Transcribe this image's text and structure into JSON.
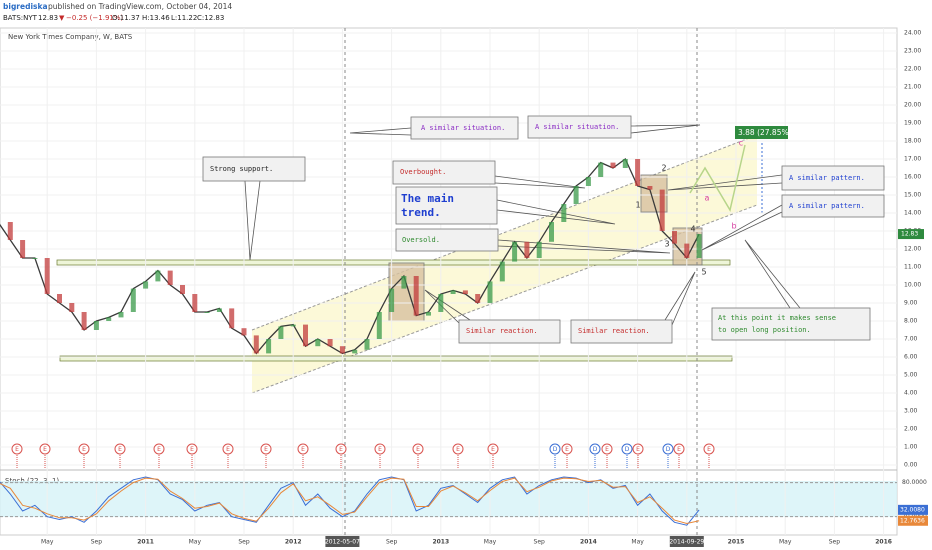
{
  "header": {
    "author": "bigrediska",
    "published": "published on TradingView.com, October 04, 2014",
    "quote": [
      "BATS:NYT",
      "12.83",
      "▼",
      "−0.25 (−1.91%)",
      "O:11.37",
      "H:13.46",
      "L:11.22",
      "C:12.83"
    ]
  },
  "chart_data": [
    {
      "type": "line",
      "title": "New York Times Company, W, BATS",
      "color": "#3a3a3a",
      "categories": [
        null,
        null,
        null,
        null,
        "May",
        null,
        null,
        null,
        "Sep",
        null,
        null,
        null,
        "2011",
        null,
        null,
        null,
        "May",
        null,
        null,
        null,
        "Sep",
        null,
        null,
        null,
        "2012",
        null,
        null,
        null,
        "2012-05-07",
        null,
        null,
        null,
        "Sep",
        null,
        null,
        null,
        "2013",
        null,
        null,
        null,
        "May",
        null,
        null,
        null,
        "Sep",
        null,
        null,
        null,
        "2014",
        null,
        null,
        null,
        "May",
        null,
        null,
        null,
        "2014-09-29",
        null,
        null,
        null,
        "2015",
        null,
        null,
        null,
        "May",
        null,
        null,
        null,
        "Sep",
        null,
        null,
        null,
        "2016",
        null,
        null
      ],
      "values": [
        13.5,
        12.5,
        11.5,
        11.5,
        9.5,
        9,
        8.5,
        7.5,
        8,
        8.2,
        8.5,
        9.8,
        10.2,
        10.8,
        10,
        9.5,
        8.5,
        8.5,
        8.7,
        7.6,
        7.2,
        6.2,
        7,
        7.7,
        7.8,
        6.6,
        7,
        6.6,
        6.2,
        6.4,
        7,
        8.5,
        9.8,
        10.5,
        8.3,
        8.5,
        9.5,
        9.7,
        9.5,
        9,
        10.2,
        11.3,
        12.4,
        11.5,
        12.4,
        13.5,
        14.5,
        15.5,
        16,
        16.8,
        16.5,
        17,
        15.5,
        15.3,
        13,
        12.3,
        11.5,
        12.83,
        null,
        null,
        null,
        null,
        null,
        null,
        null,
        null,
        null,
        null,
        null,
        null,
        null,
        null,
        null,
        null,
        null
      ],
      "last_label": "12.83",
      "ylim": [
        0,
        24
      ],
      "yticks": [
        {
          "value": 0,
          "label": "0.00"
        },
        {
          "value": 1,
          "label": "1.00"
        },
        {
          "value": 2,
          "label": "2.00"
        },
        {
          "value": 3,
          "label": "3.00"
        },
        {
          "value": 4,
          "label": "4.00"
        },
        {
          "value": 5,
          "label": "5.00"
        },
        {
          "value": 6,
          "label": "6.00"
        },
        {
          "value": 7,
          "label": "7.00"
        },
        {
          "value": 8,
          "label": "8.00"
        },
        {
          "value": 9,
          "label": "9.00"
        },
        {
          "value": 10,
          "label": "10.00"
        },
        {
          "value": 11,
          "label": "11.00"
        },
        {
          "value": 12,
          "label": "12.00"
        },
        {
          "value": 13,
          "label": "13.00"
        },
        {
          "value": 14,
          "label": "14.00"
        },
        {
          "value": 15,
          "label": "15.00"
        },
        {
          "value": 16,
          "label": "16.00"
        },
        {
          "value": 17,
          "label": "17.00"
        },
        {
          "value": 18,
          "label": "18.00"
        },
        {
          "value": 19,
          "label": "19.00"
        },
        {
          "value": 20,
          "label": "20.00"
        },
        {
          "value": 21,
          "label": "21.00"
        },
        {
          "value": 22,
          "label": "22.00"
        },
        {
          "value": 23,
          "label": "23.00"
        },
        {
          "value": 24,
          "label": "24.00"
        }
      ],
      "grid": true
    },
    {
      "type": "line",
      "title": "Stoch (22, 3, 1)",
      "ylim": [
        0,
        100
      ],
      "yticks": [
        {
          "value": 20,
          "label": "20.0000"
        },
        {
          "value": 80,
          "label": "80.0000"
        }
      ],
      "series": [
        {
          "color": "#3b6fd4",
          "last_label": "32.0080",
          "values": [
            85,
            60,
            30,
            40,
            20,
            15,
            20,
            10,
            30,
            55,
            70,
            85,
            90,
            85,
            60,
            50,
            30,
            40,
            45,
            20,
            15,
            10,
            40,
            70,
            80,
            40,
            60,
            35,
            20,
            30,
            60,
            85,
            90,
            85,
            30,
            40,
            70,
            75,
            60,
            45,
            70,
            85,
            90,
            60,
            75,
            85,
            90,
            88,
            80,
            85,
            70,
            75,
            40,
            60,
            30,
            10,
            5,
            32.008
          ]
        },
        {
          "color": "#e8883a",
          "last_label": "12.7636",
          "values": [
            80,
            70,
            40,
            35,
            25,
            18,
            18,
            14,
            25,
            48,
            65,
            80,
            88,
            86,
            65,
            52,
            35,
            38,
            44,
            25,
            17,
            12,
            35,
            62,
            78,
            48,
            55,
            40,
            24,
            28,
            55,
            80,
            88,
            86,
            38,
            38,
            65,
            74,
            62,
            48,
            66,
            82,
            88,
            64,
            72,
            83,
            88,
            87,
            82,
            84,
            72,
            73,
            45,
            55,
            35,
            14,
            8,
            12.7636
          ]
        }
      ]
    }
  ],
  "annotations": {
    "strong_support": "Strong support.",
    "similar_situation_1": "A similar situation.",
    "similar_situation_2": "A similar situation.",
    "overbought": "Overbought.",
    "main_trend": [
      "The main",
      "trend."
    ],
    "oversold": "Oversold.",
    "similar_reaction_1": "Similar reaction.",
    "similar_reaction_2": "Similar reaction.",
    "similar_pattern_1": "A similar pattern.",
    "similar_pattern_2": "A similar pattern.",
    "long_position": [
      "At this point it makes sense",
      "to open long position."
    ],
    "target": "3.88 (27.85%)",
    "waves": [
      "1",
      "2",
      "3",
      "4",
      "5",
      "a",
      "b",
      "c"
    ]
  },
  "events": [
    "E",
    "E",
    "E",
    "E",
    "E",
    "E",
    "E",
    "E",
    "E",
    "E",
    "E",
    "E",
    "E",
    "E",
    "D",
    "E",
    "D",
    "E",
    "D",
    "E",
    "D",
    "E",
    "E"
  ]
}
